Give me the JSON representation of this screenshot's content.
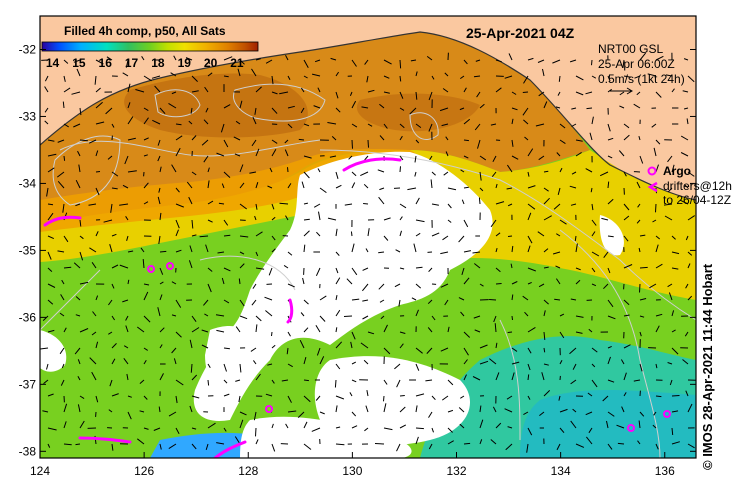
{
  "map": {
    "date_title": "25-Apr-2021 04Z",
    "colorbar": {
      "title": "Filled 4h comp, p50, All Sats",
      "tick_labels": [
        "14",
        "15",
        "16",
        "17",
        "18",
        "19",
        "20",
        "21"
      ],
      "range": [
        13.6,
        21.8
      ],
      "colors": [
        "#2a00a0",
        "#0050ff",
        "#00b0ff",
        "#00e0c0",
        "#30c060",
        "#70d020",
        "#c0e000",
        "#f0e000",
        "#f0b000",
        "#e08000",
        "#c05000",
        "#a02000"
      ]
    },
    "current_info": {
      "line1": "NRT00 GSL",
      "line2": "25-Apr 06:00Z",
      "line3": "0.5m/s (1kt 24h)"
    },
    "legend": {
      "argo_label": "Argo",
      "drifters_line1": "drifters@12h",
      "drifters_line2": "to 26/04-12Z",
      "argo_color": "#ff00ff"
    },
    "lat_labels": [
      "-32",
      "-33",
      "-34",
      "-35",
      "-36",
      "-37",
      "-38"
    ],
    "lon_labels": [
      "124",
      "126",
      "128",
      "130",
      "132",
      "134",
      "136"
    ],
    "lat_range": [
      -31.5,
      -38.1
    ],
    "lon_range": [
      124,
      136.6
    ],
    "credit": "© IMOS 28-Apr-2021 11:44 Hobart",
    "land_color": "#fac8a0",
    "missing_color": "#ffffff"
  }
}
